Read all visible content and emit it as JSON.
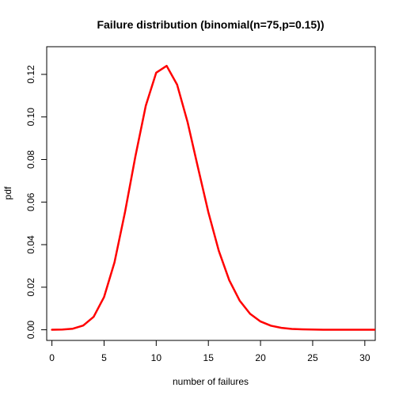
{
  "chart_data": {
    "type": "line",
    "title": "Failure distribution (binomial(n=75,p=0.15))",
    "xlabel": "number of failures",
    "ylabel": "pdf",
    "xlim": [
      -0.5,
      31
    ],
    "ylim": [
      -0.005,
      0.133
    ],
    "x_ticks": [
      0,
      5,
      10,
      15,
      20,
      25,
      30
    ],
    "x_tick_labels": [
      "0",
      "5",
      "10",
      "15",
      "20",
      "25",
      "30"
    ],
    "y_ticks": [
      0.0,
      0.02,
      0.04,
      0.06,
      0.08,
      0.1,
      0.12
    ],
    "y_tick_labels": [
      "0.00",
      "0.02",
      "0.04",
      "0.06",
      "0.08",
      "0.10",
      "0.12"
    ],
    "grid": false,
    "legend": "none",
    "series": [
      {
        "color": "#ff0000",
        "x": [
          0,
          1,
          2,
          3,
          4,
          5,
          6,
          7,
          8,
          9,
          10,
          11,
          12,
          13,
          14,
          15,
          16,
          17,
          18,
          19,
          20,
          21,
          22,
          23,
          24,
          25,
          26,
          27,
          28,
          29,
          30,
          31
        ],
        "y": [
          0.0,
          0.0001,
          0.0005,
          0.002,
          0.0061,
          0.0154,
          0.0317,
          0.0551,
          0.0814,
          0.1053,
          0.1208,
          0.124,
          0.1152,
          0.0977,
          0.0763,
          0.0552,
          0.0371,
          0.0233,
          0.0137,
          0.0075,
          0.0039,
          0.0019,
          0.0009,
          0.0004,
          0.0002,
          0.0001,
          0.0,
          0.0,
          0.0,
          0.0,
          0.0,
          0.0
        ]
      }
    ]
  }
}
